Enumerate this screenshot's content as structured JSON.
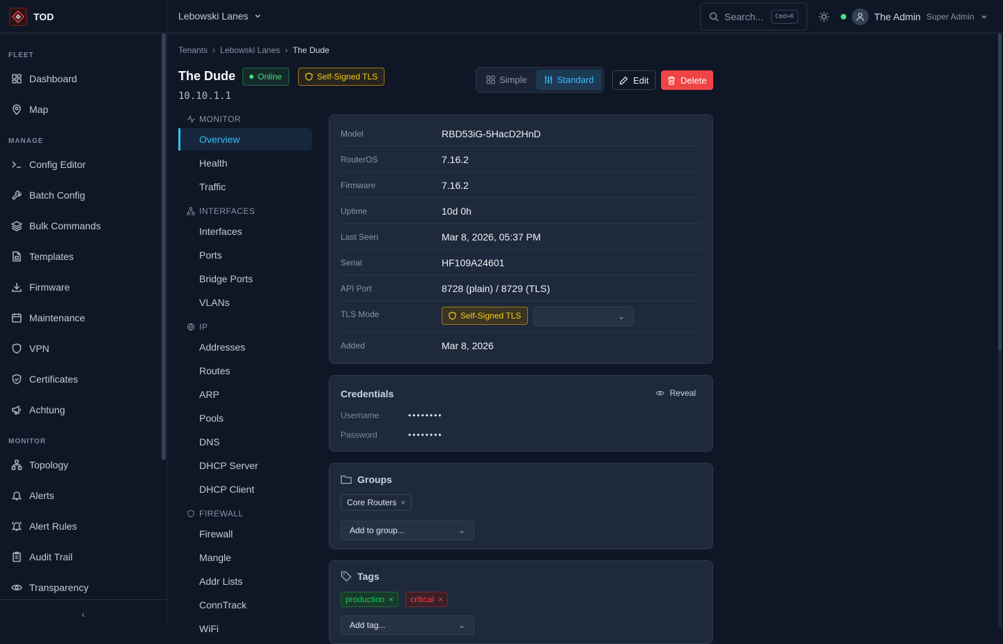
{
  "app": {
    "name": "TOD"
  },
  "sidebar": {
    "sections": [
      {
        "label": "FLEET",
        "items": [
          {
            "label": "Dashboard",
            "icon": "grid-icon"
          },
          {
            "label": "Map",
            "icon": "map-pin-icon"
          }
        ]
      },
      {
        "label": "MANAGE",
        "items": [
          {
            "label": "Config Editor",
            "icon": "terminal-icon"
          },
          {
            "label": "Batch Config",
            "icon": "wrench-icon"
          },
          {
            "label": "Bulk Commands",
            "icon": "layers-icon"
          },
          {
            "label": "Templates",
            "icon": "file-icon"
          },
          {
            "label": "Firmware",
            "icon": "download-icon"
          },
          {
            "label": "Maintenance",
            "icon": "calendar-icon"
          },
          {
            "label": "VPN",
            "icon": "shield-icon"
          },
          {
            "label": "Certificates",
            "icon": "shield-check-icon"
          },
          {
            "label": "Achtung",
            "icon": "megaphone-icon"
          }
        ]
      },
      {
        "label": "MONITOR",
        "items": [
          {
            "label": "Topology",
            "icon": "network-icon"
          },
          {
            "label": "Alerts",
            "icon": "bell-icon"
          },
          {
            "label": "Alert Rules",
            "icon": "bell-ring-icon"
          },
          {
            "label": "Audit Trail",
            "icon": "clipboard-icon"
          },
          {
            "label": "Transparency",
            "icon": "eye-icon"
          }
        ]
      }
    ]
  },
  "topbar": {
    "tenant": "Lebowski Lanes",
    "search_placeholder": "Search...",
    "search_shortcut": "Cmd+K",
    "user_name": "The Admin",
    "user_role": "Super Admin"
  },
  "breadcrumb": [
    "Tenants",
    "Lebowski Lanes",
    "The Dude"
  ],
  "device": {
    "name": "The Dude",
    "status": "Online",
    "tls_badge": "Self-Signed TLS",
    "ip": "10.10.1.1"
  },
  "view_toggle": {
    "options": [
      "Simple",
      "Standard"
    ],
    "selected": "Standard"
  },
  "actions": {
    "edit": "Edit",
    "delete": "Delete"
  },
  "subnav": [
    {
      "section": "MONITOR",
      "items": [
        "Overview",
        "Health",
        "Traffic"
      ]
    },
    {
      "section": "INTERFACES",
      "items": [
        "Interfaces",
        "Ports",
        "Bridge Ports",
        "VLANs"
      ]
    },
    {
      "section": "IP",
      "items": [
        "Addresses",
        "Routes",
        "ARP",
        "Pools",
        "DNS",
        "DHCP Server",
        "DHCP Client"
      ]
    },
    {
      "section": "FIREWALL",
      "items": [
        "Firewall",
        "Mangle",
        "Addr Lists",
        "ConnTrack",
        "WiFi"
      ]
    }
  ],
  "subnav_active": "Overview",
  "details": [
    {
      "label": "Model",
      "value": "RBD53iG-5HacD2HnD"
    },
    {
      "label": "RouterOS",
      "value": "7.16.2"
    },
    {
      "label": "Firmware",
      "value": "7.16.2"
    },
    {
      "label": "Uptime",
      "value": "10d 0h"
    },
    {
      "label": "Last Seen",
      "value": "Mar 8, 2026, 05:37 PM"
    },
    {
      "label": "Serial",
      "value": "HF109A24601"
    },
    {
      "label": "API Port",
      "value": "8728 (plain) / 8729 (TLS)"
    },
    {
      "label": "TLS Mode",
      "value": "Self-Signed TLS"
    },
    {
      "label": "Added",
      "value": "Mar 8, 2026"
    }
  ],
  "credentials": {
    "title": "Credentials",
    "reveal": "Reveal",
    "username_label": "Username",
    "username": "••••••••",
    "password_label": "Password",
    "password": "••••••••"
  },
  "groups": {
    "title": "Groups",
    "items": [
      "Core Routers"
    ],
    "add_placeholder": "Add to group..."
  },
  "tags": {
    "title": "Tags",
    "items": [
      {
        "label": "production",
        "color": "#22c55e"
      },
      {
        "label": "critical",
        "color": "#ef4444"
      }
    ],
    "add_placeholder": "Add tag..."
  }
}
